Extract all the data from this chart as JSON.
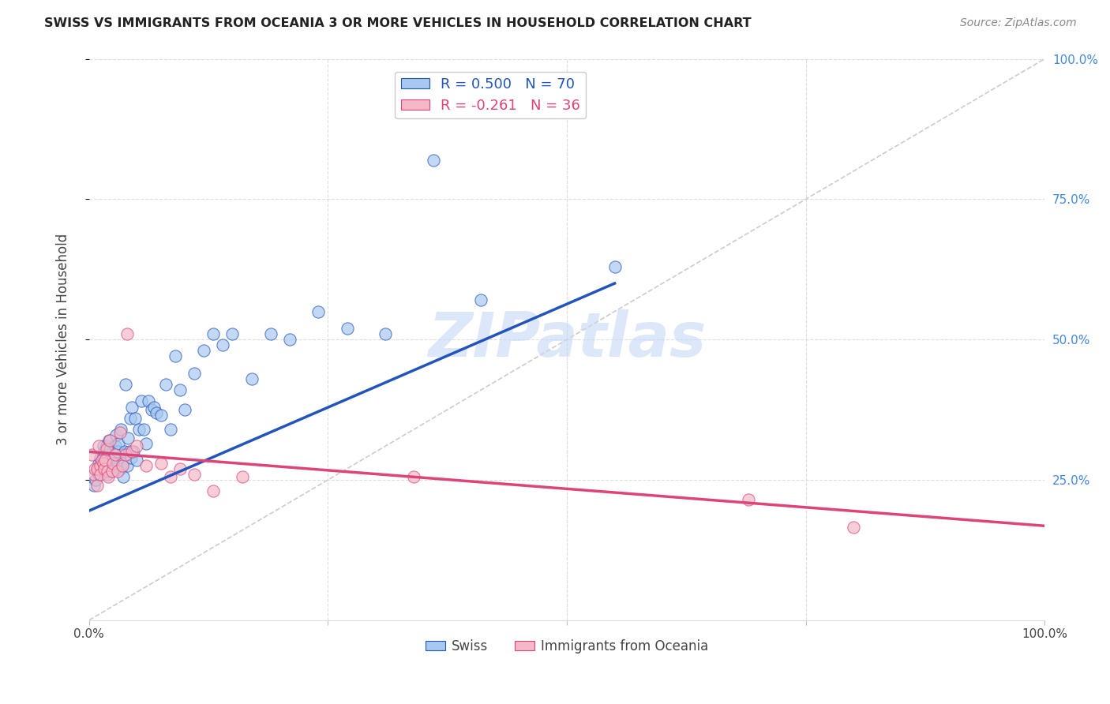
{
  "title": "SWISS VS IMMIGRANTS FROM OCEANIA 3 OR MORE VEHICLES IN HOUSEHOLD CORRELATION CHART",
  "source": "Source: ZipAtlas.com",
  "ylabel": "3 or more Vehicles in Household",
  "background_color": "#ffffff",
  "plot_bg_color": "#ffffff",
  "grid_color": "#dddddd",
  "swiss_color": "#a8c8f0",
  "oceania_color": "#f5b8c8",
  "swiss_line_color": "#2255bb",
  "oceania_line_color": "#dd4477",
  "diagonal_color": "#cccccc",
  "R_swiss": 0.5,
  "N_swiss": 70,
  "R_oceania": -0.261,
  "N_oceania": 36,
  "xlim": [
    0,
    1
  ],
  "ylim": [
    0,
    1
  ],
  "watermark": "ZIPatlas",
  "legend_swiss": "Swiss",
  "legend_oceania": "Immigrants from Oceania",
  "swiss_points_x": [
    0.005,
    0.007,
    0.008,
    0.01,
    0.01,
    0.012,
    0.013,
    0.015,
    0.015,
    0.016,
    0.017,
    0.018,
    0.018,
    0.019,
    0.02,
    0.02,
    0.021,
    0.022,
    0.022,
    0.023,
    0.025,
    0.026,
    0.027,
    0.028,
    0.03,
    0.03,
    0.031,
    0.032,
    0.033,
    0.035,
    0.036,
    0.037,
    0.038,
    0.04,
    0.041,
    0.042,
    0.043,
    0.044,
    0.045,
    0.046,
    0.048,
    0.05,
    0.052,
    0.055,
    0.057,
    0.06,
    0.062,
    0.065,
    0.068,
    0.07,
    0.075,
    0.08,
    0.085,
    0.09,
    0.095,
    0.1,
    0.11,
    0.12,
    0.13,
    0.14,
    0.15,
    0.17,
    0.19,
    0.21,
    0.24,
    0.27,
    0.31,
    0.36,
    0.41,
    0.55
  ],
  "swiss_points_y": [
    0.24,
    0.25,
    0.27,
    0.26,
    0.28,
    0.29,
    0.275,
    0.29,
    0.31,
    0.3,
    0.27,
    0.29,
    0.31,
    0.26,
    0.275,
    0.295,
    0.32,
    0.285,
    0.305,
    0.265,
    0.275,
    0.29,
    0.31,
    0.33,
    0.28,
    0.3,
    0.315,
    0.27,
    0.34,
    0.28,
    0.255,
    0.3,
    0.42,
    0.275,
    0.325,
    0.3,
    0.36,
    0.29,
    0.38,
    0.3,
    0.36,
    0.285,
    0.34,
    0.39,
    0.34,
    0.315,
    0.39,
    0.375,
    0.38,
    0.37,
    0.365,
    0.42,
    0.34,
    0.47,
    0.41,
    0.375,
    0.44,
    0.48,
    0.51,
    0.49,
    0.51,
    0.43,
    0.51,
    0.5,
    0.55,
    0.52,
    0.51,
    0.82,
    0.57,
    0.63
  ],
  "oceania_points_x": [
    0.003,
    0.005,
    0.006,
    0.008,
    0.008,
    0.01,
    0.012,
    0.012,
    0.013,
    0.015,
    0.016,
    0.017,
    0.018,
    0.019,
    0.02,
    0.022,
    0.024,
    0.025,
    0.027,
    0.03,
    0.032,
    0.035,
    0.038,
    0.04,
    0.045,
    0.05,
    0.06,
    0.075,
    0.085,
    0.095,
    0.11,
    0.13,
    0.16,
    0.34,
    0.69,
    0.8
  ],
  "oceania_points_y": [
    0.295,
    0.26,
    0.27,
    0.24,
    0.27,
    0.31,
    0.275,
    0.26,
    0.285,
    0.28,
    0.27,
    0.285,
    0.305,
    0.265,
    0.255,
    0.32,
    0.265,
    0.28,
    0.295,
    0.265,
    0.335,
    0.275,
    0.295,
    0.51,
    0.3,
    0.31,
    0.275,
    0.28,
    0.255,
    0.27,
    0.26,
    0.23,
    0.255,
    0.255,
    0.215,
    0.165
  ],
  "swiss_trend_x": [
    0.0,
    0.55
  ],
  "swiss_trend_y": [
    0.195,
    0.6
  ],
  "oceania_trend_x": [
    0.0,
    1.0
  ],
  "oceania_trend_y": [
    0.3,
    0.168
  ]
}
